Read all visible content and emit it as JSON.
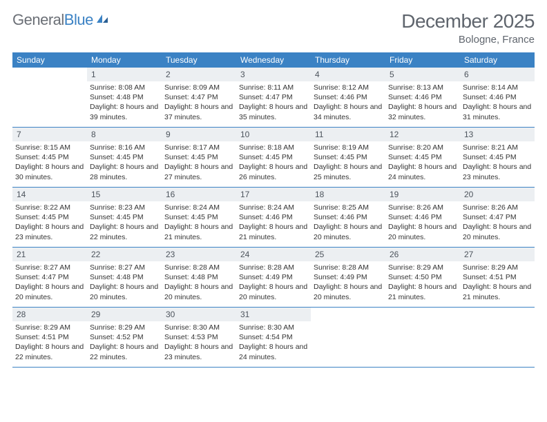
{
  "logo": {
    "text_gray": "General",
    "text_blue": "Blue"
  },
  "header": {
    "month_title": "December 2025",
    "location": "Bologne, France"
  },
  "colors": {
    "header_bg": "#3b82c4",
    "header_text": "#ffffff",
    "daynum_bg": "#eceff2",
    "daynum_text": "#4c535c",
    "body_text": "#333333",
    "title_text": "#5f656d",
    "row_border": "#3b82c4"
  },
  "day_names": [
    "Sunday",
    "Monday",
    "Tuesday",
    "Wednesday",
    "Thursday",
    "Friday",
    "Saturday"
  ],
  "weeks": [
    [
      null,
      {
        "n": "1",
        "sr": "Sunrise: 8:08 AM",
        "ss": "Sunset: 4:48 PM",
        "dl": "Daylight: 8 hours and 39 minutes."
      },
      {
        "n": "2",
        "sr": "Sunrise: 8:09 AM",
        "ss": "Sunset: 4:47 PM",
        "dl": "Daylight: 8 hours and 37 minutes."
      },
      {
        "n": "3",
        "sr": "Sunrise: 8:11 AM",
        "ss": "Sunset: 4:47 PM",
        "dl": "Daylight: 8 hours and 35 minutes."
      },
      {
        "n": "4",
        "sr": "Sunrise: 8:12 AM",
        "ss": "Sunset: 4:46 PM",
        "dl": "Daylight: 8 hours and 34 minutes."
      },
      {
        "n": "5",
        "sr": "Sunrise: 8:13 AM",
        "ss": "Sunset: 4:46 PM",
        "dl": "Daylight: 8 hours and 32 minutes."
      },
      {
        "n": "6",
        "sr": "Sunrise: 8:14 AM",
        "ss": "Sunset: 4:46 PM",
        "dl": "Daylight: 8 hours and 31 minutes."
      }
    ],
    [
      {
        "n": "7",
        "sr": "Sunrise: 8:15 AM",
        "ss": "Sunset: 4:45 PM",
        "dl": "Daylight: 8 hours and 30 minutes."
      },
      {
        "n": "8",
        "sr": "Sunrise: 8:16 AM",
        "ss": "Sunset: 4:45 PM",
        "dl": "Daylight: 8 hours and 28 minutes."
      },
      {
        "n": "9",
        "sr": "Sunrise: 8:17 AM",
        "ss": "Sunset: 4:45 PM",
        "dl": "Daylight: 8 hours and 27 minutes."
      },
      {
        "n": "10",
        "sr": "Sunrise: 8:18 AM",
        "ss": "Sunset: 4:45 PM",
        "dl": "Daylight: 8 hours and 26 minutes."
      },
      {
        "n": "11",
        "sr": "Sunrise: 8:19 AM",
        "ss": "Sunset: 4:45 PM",
        "dl": "Daylight: 8 hours and 25 minutes."
      },
      {
        "n": "12",
        "sr": "Sunrise: 8:20 AM",
        "ss": "Sunset: 4:45 PM",
        "dl": "Daylight: 8 hours and 24 minutes."
      },
      {
        "n": "13",
        "sr": "Sunrise: 8:21 AM",
        "ss": "Sunset: 4:45 PM",
        "dl": "Daylight: 8 hours and 23 minutes."
      }
    ],
    [
      {
        "n": "14",
        "sr": "Sunrise: 8:22 AM",
        "ss": "Sunset: 4:45 PM",
        "dl": "Daylight: 8 hours and 23 minutes."
      },
      {
        "n": "15",
        "sr": "Sunrise: 8:23 AM",
        "ss": "Sunset: 4:45 PM",
        "dl": "Daylight: 8 hours and 22 minutes."
      },
      {
        "n": "16",
        "sr": "Sunrise: 8:24 AM",
        "ss": "Sunset: 4:45 PM",
        "dl": "Daylight: 8 hours and 21 minutes."
      },
      {
        "n": "17",
        "sr": "Sunrise: 8:24 AM",
        "ss": "Sunset: 4:46 PM",
        "dl": "Daylight: 8 hours and 21 minutes."
      },
      {
        "n": "18",
        "sr": "Sunrise: 8:25 AM",
        "ss": "Sunset: 4:46 PM",
        "dl": "Daylight: 8 hours and 20 minutes."
      },
      {
        "n": "19",
        "sr": "Sunrise: 8:26 AM",
        "ss": "Sunset: 4:46 PM",
        "dl": "Daylight: 8 hours and 20 minutes."
      },
      {
        "n": "20",
        "sr": "Sunrise: 8:26 AM",
        "ss": "Sunset: 4:47 PM",
        "dl": "Daylight: 8 hours and 20 minutes."
      }
    ],
    [
      {
        "n": "21",
        "sr": "Sunrise: 8:27 AM",
        "ss": "Sunset: 4:47 PM",
        "dl": "Daylight: 8 hours and 20 minutes."
      },
      {
        "n": "22",
        "sr": "Sunrise: 8:27 AM",
        "ss": "Sunset: 4:48 PM",
        "dl": "Daylight: 8 hours and 20 minutes."
      },
      {
        "n": "23",
        "sr": "Sunrise: 8:28 AM",
        "ss": "Sunset: 4:48 PM",
        "dl": "Daylight: 8 hours and 20 minutes."
      },
      {
        "n": "24",
        "sr": "Sunrise: 8:28 AM",
        "ss": "Sunset: 4:49 PM",
        "dl": "Daylight: 8 hours and 20 minutes."
      },
      {
        "n": "25",
        "sr": "Sunrise: 8:28 AM",
        "ss": "Sunset: 4:49 PM",
        "dl": "Daylight: 8 hours and 20 minutes."
      },
      {
        "n": "26",
        "sr": "Sunrise: 8:29 AM",
        "ss": "Sunset: 4:50 PM",
        "dl": "Daylight: 8 hours and 21 minutes."
      },
      {
        "n": "27",
        "sr": "Sunrise: 8:29 AM",
        "ss": "Sunset: 4:51 PM",
        "dl": "Daylight: 8 hours and 21 minutes."
      }
    ],
    [
      {
        "n": "28",
        "sr": "Sunrise: 8:29 AM",
        "ss": "Sunset: 4:51 PM",
        "dl": "Daylight: 8 hours and 22 minutes."
      },
      {
        "n": "29",
        "sr": "Sunrise: 8:29 AM",
        "ss": "Sunset: 4:52 PM",
        "dl": "Daylight: 8 hours and 22 minutes."
      },
      {
        "n": "30",
        "sr": "Sunrise: 8:30 AM",
        "ss": "Sunset: 4:53 PM",
        "dl": "Daylight: 8 hours and 23 minutes."
      },
      {
        "n": "31",
        "sr": "Sunrise: 8:30 AM",
        "ss": "Sunset: 4:54 PM",
        "dl": "Daylight: 8 hours and 24 minutes."
      },
      null,
      null,
      null
    ]
  ]
}
